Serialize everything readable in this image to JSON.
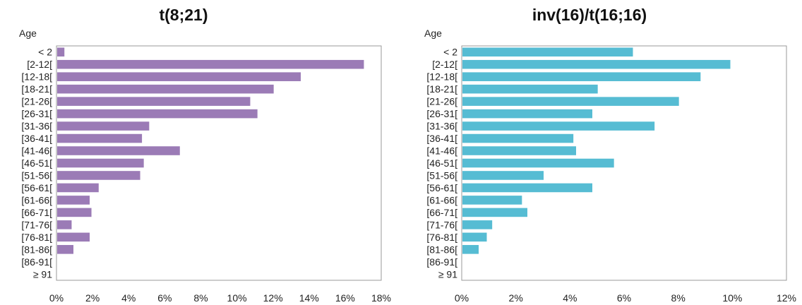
{
  "chart_data": [
    {
      "type": "bar",
      "orientation": "horizontal",
      "title": "t(8;21)",
      "ylabel": "Age",
      "xlabel": "",
      "color": "#9b7bb6",
      "categories": [
        "< 2",
        "[2-12[",
        "[12-18[",
        "[18-21[",
        "[21-26[",
        "[26-31[",
        "[31-36[",
        "[36-41[",
        "[41-46[",
        "[46-51[",
        "[51-56[",
        "[56-61[",
        "[61-66[",
        "[66-71[",
        "[71-76[",
        "[76-81[",
        "[81-86[",
        "[86-91[",
        "≥ 91"
      ],
      "values": [
        0.4,
        17.0,
        13.5,
        12.0,
        10.7,
        11.1,
        5.1,
        4.7,
        6.8,
        4.8,
        4.6,
        2.3,
        1.8,
        1.9,
        0.8,
        1.8,
        0.9,
        0,
        0
      ],
      "xlim": [
        0,
        18
      ],
      "xticks": [
        "0%",
        "2%",
        "4%",
        "6%",
        "8%",
        "10%",
        "12%",
        "14%",
        "16%",
        "18%"
      ],
      "grid": false
    },
    {
      "type": "bar",
      "orientation": "horizontal",
      "title": "inv(16)/t(16;16)",
      "ylabel": "Age",
      "xlabel": "",
      "color": "#56bcd3",
      "categories": [
        "< 2",
        "[2-12[",
        "[12-18[",
        "[18-21[",
        "[21-26[",
        "[26-31[",
        "[31-36[",
        "[36-41[",
        "[41-46[",
        "[46-51[",
        "[51-56[",
        "[56-61[",
        "[61-66[",
        "[66-71[",
        "[71-76[",
        "[76-81[",
        "[81-86[",
        "[86-91[",
        "≥ 91"
      ],
      "values": [
        6.3,
        9.9,
        8.8,
        5.0,
        8.0,
        4.8,
        7.1,
        4.1,
        4.2,
        5.6,
        3.0,
        4.8,
        2.2,
        2.4,
        1.1,
        0.9,
        0.6,
        0,
        0
      ],
      "xlim": [
        0,
        12
      ],
      "xticks": [
        "0%",
        "2%",
        "4%",
        "6%",
        "8%",
        "10%",
        "12%"
      ],
      "grid": false
    }
  ]
}
